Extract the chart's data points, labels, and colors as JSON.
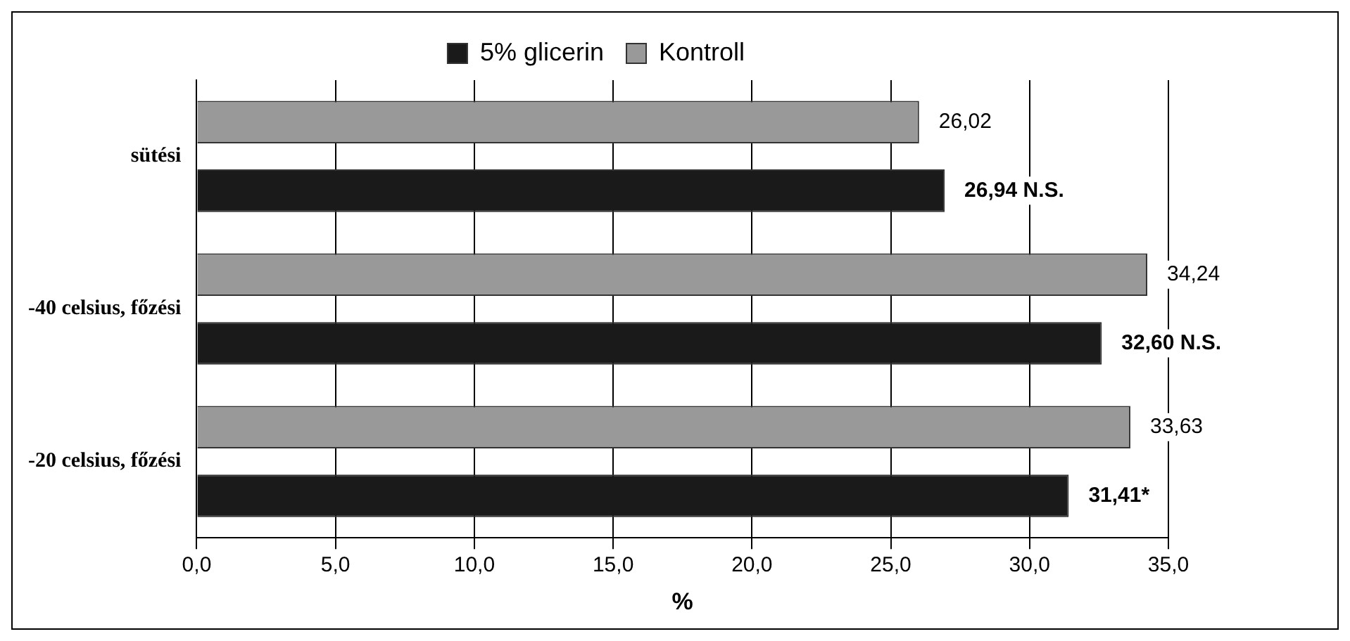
{
  "chart_data": {
    "type": "bar",
    "orientation": "horizontal",
    "xlabel": "%",
    "categories": [
      "sütési",
      "-40 celsius, főzési",
      "-20 celsius, főzési"
    ],
    "series": [
      {
        "name": "5% glicerin",
        "color": "#1a1a1a",
        "values": [
          26.94,
          32.6,
          31.41
        ],
        "value_labels": [
          "26,94 N.S.",
          "32,60 N.S.",
          "31,41*"
        ]
      },
      {
        "name": "Kontroll",
        "color": "#999999",
        "values": [
          26.02,
          34.24,
          33.63
        ],
        "value_labels": [
          "26,02",
          "34,24",
          "33,63"
        ]
      }
    ],
    "xlim": [
      0,
      35
    ],
    "xticks": [
      {
        "value": 0,
        "label": "0,0"
      },
      {
        "value": 5,
        "label": "5,0"
      },
      {
        "value": 10,
        "label": "10,0"
      },
      {
        "value": 15,
        "label": "15,0"
      },
      {
        "value": 20,
        "label": "20,0"
      },
      {
        "value": 25,
        "label": "25,0"
      },
      {
        "value": 30,
        "label": "30,0"
      },
      {
        "value": 35,
        "label": "35,0"
      }
    ],
    "grid": "x",
    "legend": "top"
  }
}
